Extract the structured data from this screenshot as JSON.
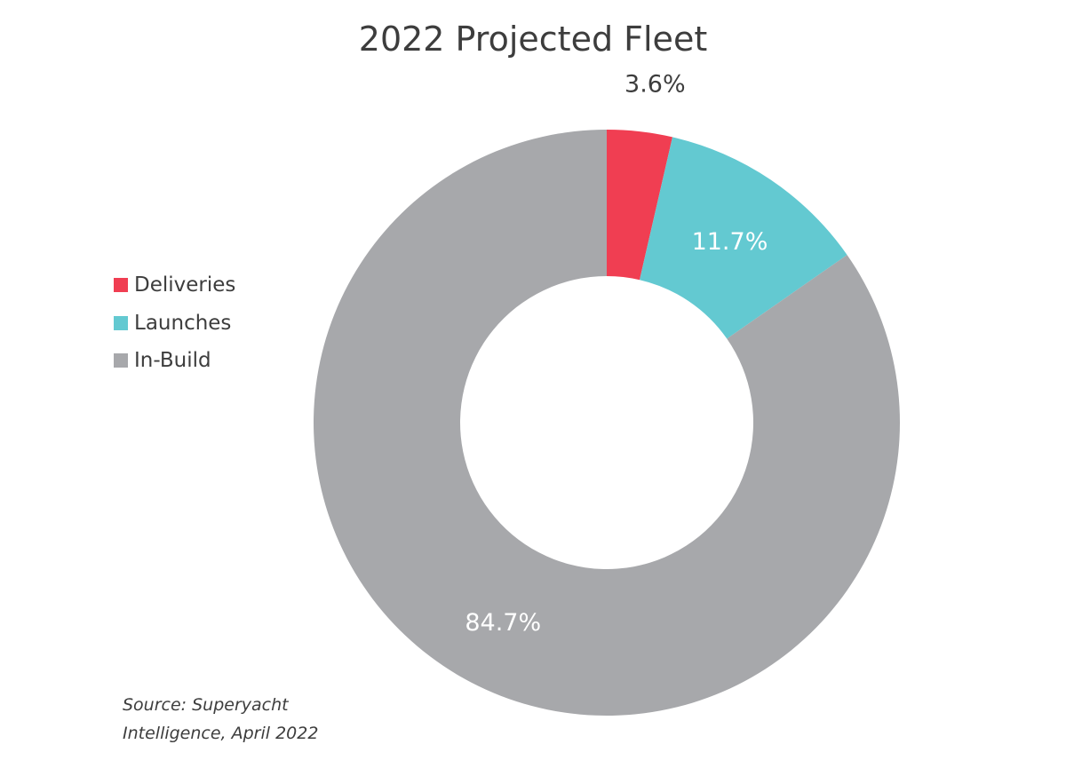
{
  "chart_data": {
    "type": "pie",
    "title": "2022 Projected Fleet",
    "donut": true,
    "legend_position": "left",
    "categories": [
      "Deliveries",
      "Launches",
      "In-Build"
    ],
    "values": [
      3.6,
      11.7,
      84.7
    ],
    "data_labels": [
      "3.6%",
      "11.7%",
      "84.7%"
    ],
    "colors": [
      "#f03e52",
      "#63c9d1",
      "#a7a8ab"
    ],
    "label_colors": [
      "#3d3d3d",
      "#ffffff",
      "#ffffff"
    ]
  },
  "legend": {
    "items": [
      {
        "label": "Deliveries",
        "color": "#f03e52"
      },
      {
        "label": "Launches",
        "color": "#63c9d1"
      },
      {
        "label": "In-Build",
        "color": "#a7a8ab"
      }
    ]
  },
  "source": {
    "line1": "Source: Superyacht",
    "line2": "Intelligence, April 2022"
  }
}
